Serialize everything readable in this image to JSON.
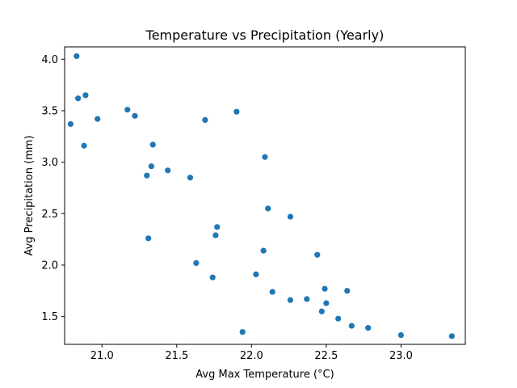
{
  "chart_data": {
    "type": "scatter",
    "title": "Temperature vs Precipitation (Yearly)",
    "xlabel": "Avg Max Temperature (°C)",
    "ylabel": "Avg Precipitation (mm)",
    "xlim": [
      20.75,
      23.43
    ],
    "ylim": [
      1.23,
      4.12
    ],
    "xticks": [
      21.0,
      21.5,
      22.0,
      22.5,
      23.0
    ],
    "xtick_labels": [
      "21.0",
      "21.5",
      "22.0",
      "22.5",
      "23.0"
    ],
    "yticks": [
      1.5,
      2.0,
      2.5,
      3.0,
      3.5,
      4.0
    ],
    "ytick_labels": [
      "1.5",
      "2.0",
      "2.5",
      "3.0",
      "3.5",
      "4.0"
    ],
    "grid": false,
    "marker_color": "#1f77b4",
    "points": [
      {
        "x": 20.83,
        "y": 4.03
      },
      {
        "x": 20.84,
        "y": 3.62
      },
      {
        "x": 20.89,
        "y": 3.65
      },
      {
        "x": 20.79,
        "y": 3.37
      },
      {
        "x": 20.97,
        "y": 3.42
      },
      {
        "x": 20.88,
        "y": 3.16
      },
      {
        "x": 21.17,
        "y": 3.51
      },
      {
        "x": 21.22,
        "y": 3.45
      },
      {
        "x": 21.34,
        "y": 3.17
      },
      {
        "x": 21.33,
        "y": 2.96
      },
      {
        "x": 21.3,
        "y": 2.87
      },
      {
        "x": 21.44,
        "y": 2.92
      },
      {
        "x": 21.59,
        "y": 2.85
      },
      {
        "x": 21.69,
        "y": 3.41
      },
      {
        "x": 21.9,
        "y": 3.49
      },
      {
        "x": 22.09,
        "y": 3.05
      },
      {
        "x": 22.11,
        "y": 2.55
      },
      {
        "x": 22.26,
        "y": 2.47
      },
      {
        "x": 21.77,
        "y": 2.37
      },
      {
        "x": 21.76,
        "y": 2.29
      },
      {
        "x": 21.31,
        "y": 2.26
      },
      {
        "x": 22.08,
        "y": 2.14
      },
      {
        "x": 22.44,
        "y": 2.1
      },
      {
        "x": 21.63,
        "y": 2.02
      },
      {
        "x": 22.03,
        "y": 1.91
      },
      {
        "x": 21.74,
        "y": 1.88
      },
      {
        "x": 22.14,
        "y": 1.74
      },
      {
        "x": 22.49,
        "y": 1.77
      },
      {
        "x": 22.64,
        "y": 1.75
      },
      {
        "x": 22.26,
        "y": 1.66
      },
      {
        "x": 22.37,
        "y": 1.67
      },
      {
        "x": 22.5,
        "y": 1.63
      },
      {
        "x": 22.47,
        "y": 1.55
      },
      {
        "x": 22.58,
        "y": 1.48
      },
      {
        "x": 22.67,
        "y": 1.41
      },
      {
        "x": 22.78,
        "y": 1.39
      },
      {
        "x": 23.0,
        "y": 1.32
      },
      {
        "x": 23.34,
        "y": 1.31
      },
      {
        "x": 21.94,
        "y": 1.35
      }
    ]
  }
}
